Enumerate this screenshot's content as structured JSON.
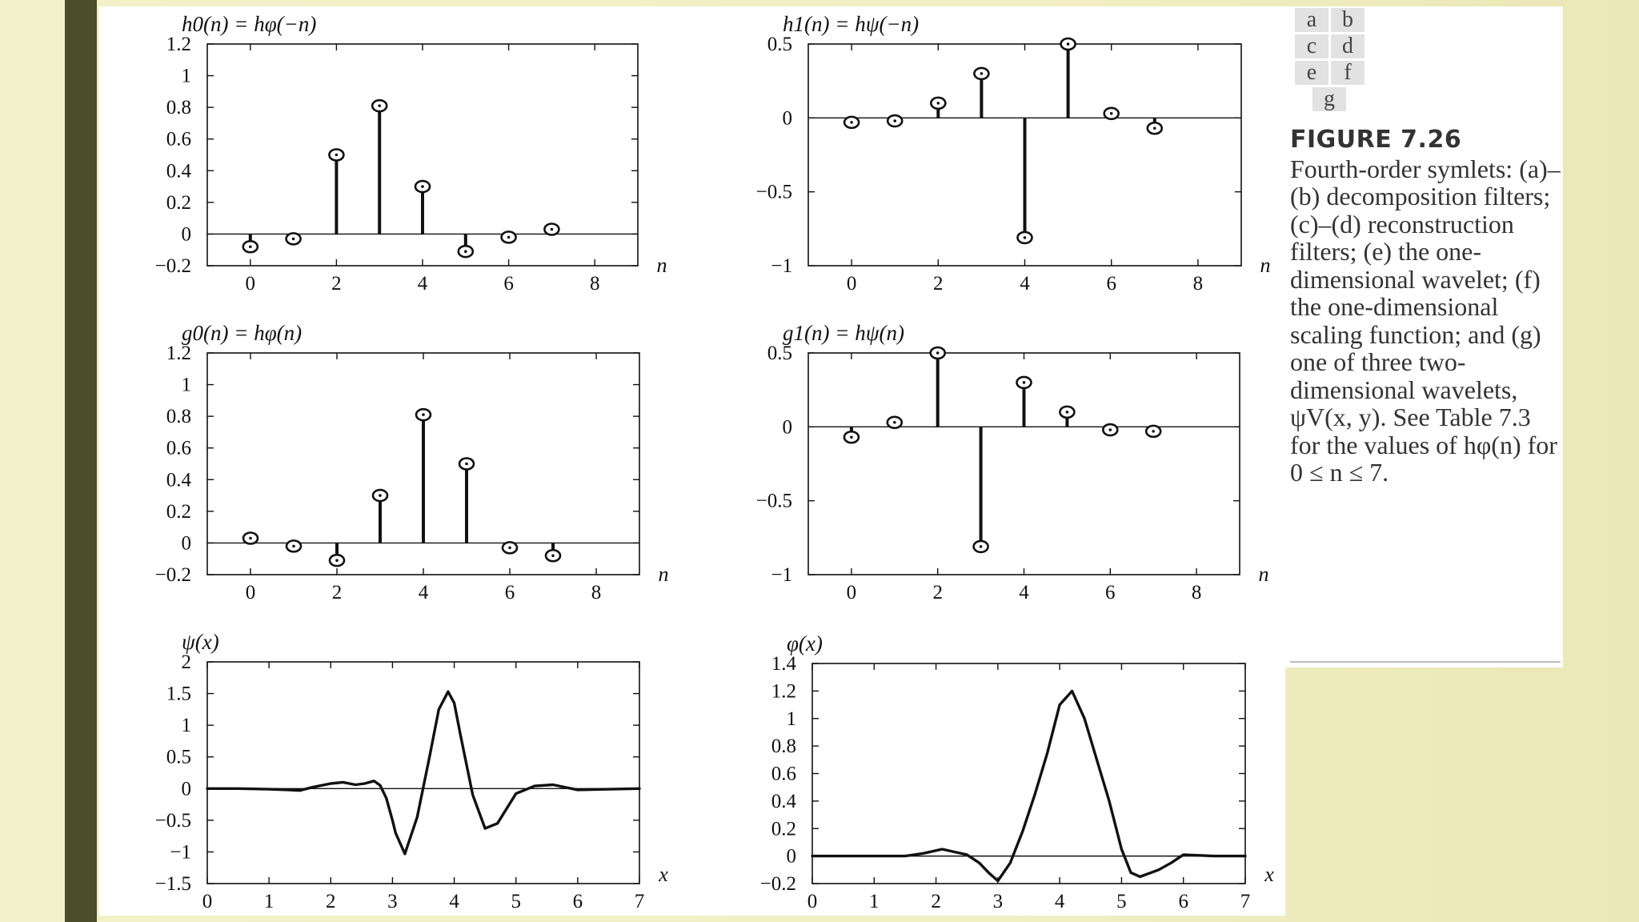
{
  "figure": {
    "panel_letters": [
      "a",
      "b",
      "c",
      "d",
      "e",
      "f",
      "g"
    ],
    "caption_title": "FIGURE 7.26",
    "caption_body": "Fourth-order symlets: (a)–(b) decomposition filters; (c)–(d) reconstruction filters; (e) the one-dimensional wavelet; (f) the one-dimensional scaling function; and (g) one of three two-dimensional wavelets, ψV(x, y). See Table 7.3 for the values of hφ(n) for 0 ≤ n ≤ 7."
  },
  "chart_data": [
    {
      "id": "a",
      "type": "stem",
      "title": "h0(n) = hφ(−n)",
      "xlabel": "n",
      "xlim": [
        -1,
        9
      ],
      "ylim": [
        -0.2,
        1.2
      ],
      "xticks": [
        0,
        2,
        4,
        6,
        8
      ],
      "xtick_labels": [
        "0",
        "2",
        "4",
        "6",
        "8"
      ],
      "yticks": [
        -0.2,
        0,
        0.2,
        0.4,
        0.6,
        0.8,
        1,
        1.2
      ],
      "ytick_labels": [
        "−0.2",
        "0",
        "0.2",
        "0.4",
        "0.6",
        "0.8",
        "1",
        "1.2"
      ],
      "x": [
        0,
        1,
        2,
        3,
        4,
        5,
        6,
        7
      ],
      "values": [
        -0.08,
        -0.03,
        0.5,
        0.81,
        0.3,
        -0.11,
        -0.02,
        0.03
      ]
    },
    {
      "id": "b",
      "type": "stem",
      "title": "h1(n) = hψ(−n)",
      "xlabel": "n",
      "xlim": [
        -1,
        9
      ],
      "ylim": [
        -1,
        0.5
      ],
      "xticks": [
        0,
        2,
        4,
        6,
        8
      ],
      "xtick_labels": [
        "0",
        "2",
        "4",
        "6",
        "8"
      ],
      "yticks": [
        -1,
        -0.5,
        0,
        0.5
      ],
      "ytick_labels": [
        "−1",
        "−0.5",
        "0",
        "0.5"
      ],
      "x": [
        0,
        1,
        2,
        3,
        4,
        5,
        6,
        7
      ],
      "values": [
        -0.03,
        -0.02,
        0.1,
        0.3,
        -0.81,
        0.5,
        0.03,
        -0.07
      ]
    },
    {
      "id": "c",
      "type": "stem",
      "title": "g0(n) = hφ(n)",
      "xlabel": "n",
      "xlim": [
        -1,
        9
      ],
      "ylim": [
        -0.2,
        1.2
      ],
      "xticks": [
        0,
        2,
        4,
        6,
        8
      ],
      "xtick_labels": [
        "0",
        "2",
        "4",
        "6",
        "8"
      ],
      "yticks": [
        -0.2,
        0,
        0.2,
        0.4,
        0.6,
        0.8,
        1,
        1.2
      ],
      "ytick_labels": [
        "−0.2",
        "0",
        "0.2",
        "0.4",
        "0.6",
        "0.8",
        "1",
        "1.2"
      ],
      "x": [
        0,
        1,
        2,
        3,
        4,
        5,
        6,
        7
      ],
      "values": [
        0.03,
        -0.02,
        -0.11,
        0.3,
        0.81,
        0.5,
        -0.03,
        -0.08
      ]
    },
    {
      "id": "d",
      "type": "stem",
      "title": "g1(n) = hψ(n)",
      "xlabel": "n",
      "xlim": [
        -1,
        9
      ],
      "ylim": [
        -1,
        0.5
      ],
      "xticks": [
        0,
        2,
        4,
        6,
        8
      ],
      "xtick_labels": [
        "0",
        "2",
        "4",
        "6",
        "8"
      ],
      "yticks": [
        -1,
        -0.5,
        0,
        0.5
      ],
      "ytick_labels": [
        "−1",
        "−0.5",
        "0",
        "0.5"
      ],
      "x": [
        0,
        1,
        2,
        3,
        4,
        5,
        6,
        7
      ],
      "values": [
        -0.07,
        0.03,
        0.5,
        -0.81,
        0.3,
        0.1,
        -0.02,
        -0.03
      ]
    },
    {
      "id": "e",
      "type": "line",
      "title": "ψ(x)",
      "xlabel": "x",
      "xlim": [
        0,
        7
      ],
      "ylim": [
        -1.5,
        2
      ],
      "xticks": [
        0,
        1,
        2,
        3,
        4,
        5,
        6,
        7
      ],
      "xtick_labels": [
        "0",
        "1",
        "2",
        "3",
        "4",
        "5",
        "6",
        "7"
      ],
      "yticks": [
        -1.5,
        -1,
        -0.5,
        0,
        0.5,
        1,
        1.5,
        2
      ],
      "ytick_labels": [
        "−1.5",
        "−1",
        "−0.5",
        "0",
        "0.5",
        "1",
        "1.5",
        "2"
      ],
      "x": [
        0,
        0.5,
        1,
        1.3,
        1.5,
        1.7,
        2.0,
        2.2,
        2.4,
        2.55,
        2.7,
        2.8,
        2.9,
        3.0,
        3.05,
        3.2,
        3.4,
        3.6,
        3.75,
        3.9,
        4.0,
        4.1,
        4.3,
        4.5,
        4.7,
        5.0,
        5.3,
        5.6,
        6.0,
        6.5,
        7.0
      ],
      "values": [
        0,
        0,
        -0.01,
        -0.02,
        -0.03,
        0.02,
        0.08,
        0.1,
        0.06,
        0.08,
        0.12,
        0.05,
        -0.15,
        -0.5,
        -0.7,
        -1.03,
        -0.45,
        0.5,
        1.25,
        1.53,
        1.35,
        0.85,
        -0.1,
        -0.63,
        -0.55,
        -0.08,
        0.04,
        0.06,
        -0.02,
        -0.01,
        0
      ]
    },
    {
      "id": "f",
      "type": "line",
      "title": "φ(x)",
      "xlabel": "x",
      "xlim": [
        0,
        7
      ],
      "ylim": [
        -0.2,
        1.4
      ],
      "xticks": [
        0,
        1,
        2,
        3,
        4,
        5,
        6,
        7
      ],
      "xtick_labels": [
        "0",
        "1",
        "2",
        "3",
        "4",
        "5",
        "6",
        "7"
      ],
      "yticks": [
        -0.2,
        0,
        0.2,
        0.4,
        0.6,
        0.8,
        1,
        1.2,
        1.4
      ],
      "ytick_labels": [
        "−0.2",
        "0",
        "0.2",
        "0.4",
        "0.6",
        "0.8",
        "1",
        "1.2",
        "1.4"
      ],
      "x": [
        0,
        1,
        1.5,
        1.8,
        2.1,
        2.3,
        2.5,
        2.7,
        2.85,
        3.0,
        3.2,
        3.4,
        3.6,
        3.8,
        4.0,
        4.2,
        4.4,
        4.6,
        4.8,
        5.0,
        5.15,
        5.3,
        5.6,
        5.8,
        6.0,
        6.5,
        7.0
      ],
      "values": [
        0,
        0,
        0,
        0.02,
        0.05,
        0.03,
        0.01,
        -0.05,
        -0.12,
        -0.18,
        -0.05,
        0.18,
        0.45,
        0.75,
        1.1,
        1.2,
        1.0,
        0.7,
        0.4,
        0.05,
        -0.12,
        -0.15,
        -0.1,
        -0.05,
        0.01,
        0,
        0
      ]
    }
  ]
}
